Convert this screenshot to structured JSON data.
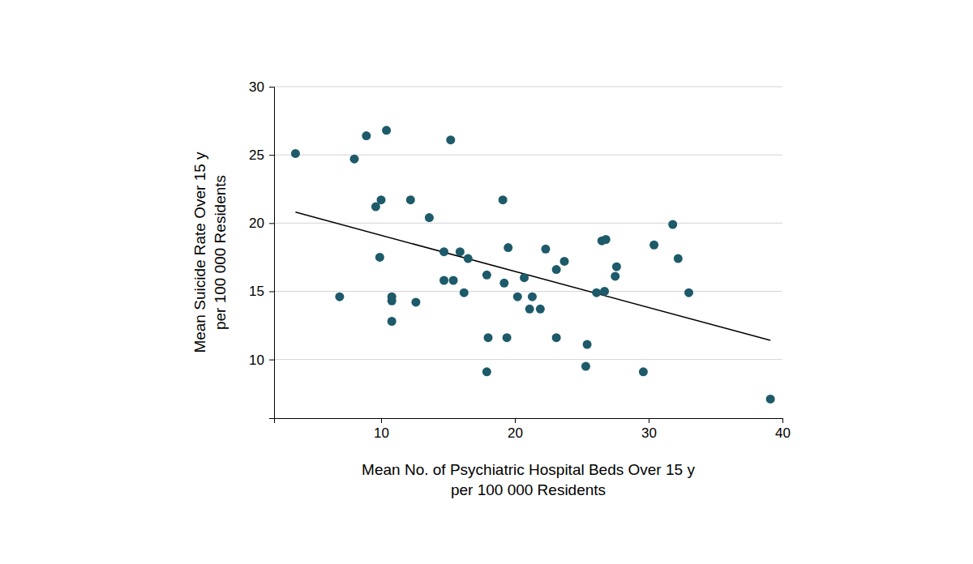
{
  "chart_data": {
    "type": "scatter",
    "x_label": [
      "Mean No. of Psychiatric Hospital Beds Over 15 y",
      "per 100 000 Residents"
    ],
    "y_label": [
      "Mean Suicide Rate Over 15 y",
      "per 100 000 Residents"
    ],
    "x": [
      3.6,
      6.9,
      8.0,
      8.9,
      9.6,
      9.9,
      10.0,
      10.4,
      10.8,
      10.8,
      10.8,
      12.2,
      12.6,
      13.6,
      14.7,
      14.7,
      15.2,
      15.4,
      15.9,
      16.2,
      16.5,
      17.9,
      18.0,
      17.9,
      19.1,
      19.2,
      19.5,
      19.4,
      20.2,
      20.7,
      21.1,
      21.3,
      21.9,
      22.3,
      23.1,
      23.1,
      23.7,
      25.3,
      25.4,
      26.1,
      26.5,
      26.8,
      26.7,
      27.5,
      27.6,
      29.6,
      30.4,
      31.8,
      32.2,
      33.0,
      39.1
    ],
    "values": [
      25.1,
      14.6,
      24.7,
      26.4,
      21.2,
      17.5,
      21.7,
      26.8,
      14.6,
      14.3,
      12.8,
      21.7,
      14.2,
      20.4,
      17.9,
      15.8,
      26.1,
      15.8,
      17.9,
      14.9,
      17.4,
      16.2,
      11.6,
      9.1,
      21.7,
      15.6,
      18.2,
      11.6,
      14.6,
      16.0,
      13.7,
      14.6,
      13.7,
      18.1,
      11.6,
      16.6,
      17.2,
      9.5,
      11.1,
      14.9,
      18.7,
      18.8,
      15.0,
      16.1,
      16.8,
      9.1,
      18.4,
      19.9,
      17.4,
      14.9,
      7.1
    ],
    "color": "#1d5a6a",
    "marker": "circle",
    "fit_line": {
      "x": [
        3.6,
        39.1
      ],
      "values": [
        20.8,
        11.4
      ],
      "color": "#000000",
      "line_style": "solid"
    },
    "xlim": [
      2,
      40
    ],
    "xticks": [
      10,
      20,
      30,
      40
    ],
    "ylim": [
      5.7,
      30
    ],
    "yticks": [
      10,
      15,
      20,
      25,
      30
    ],
    "grid": true
  }
}
